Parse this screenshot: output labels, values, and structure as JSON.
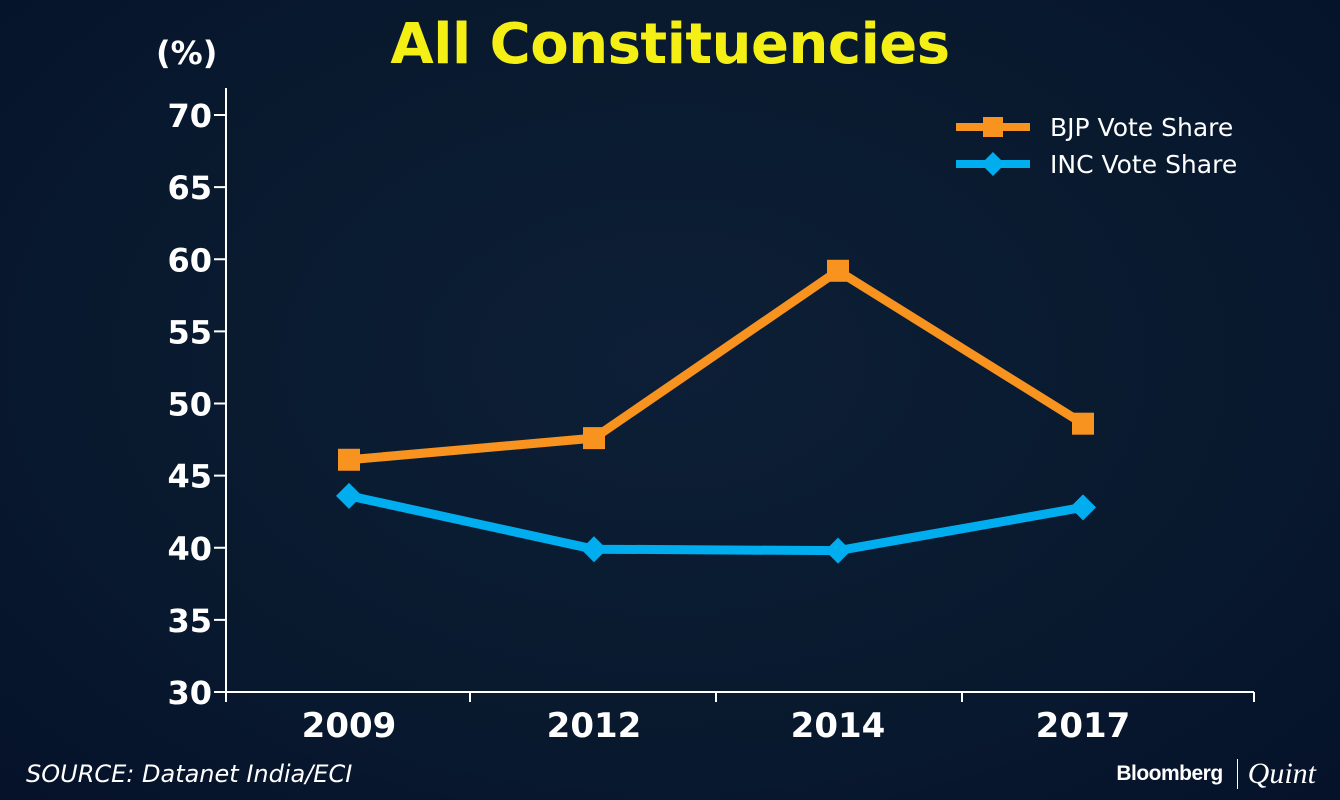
{
  "header": {
    "title": "All Constituencies",
    "unit_label": "(%)"
  },
  "footer": {
    "source": "SOURCE: Datanet India/ECI",
    "brand_primary": "Bloomberg",
    "brand_secondary": "Quint"
  },
  "chart_data": {
    "type": "line",
    "title": "All Constituencies",
    "xlabel": "",
    "ylabel": "(%)",
    "categories": [
      "2009",
      "2012",
      "2014",
      "2017"
    ],
    "ylim": [
      30,
      70
    ],
    "yticks": [
      30,
      35,
      40,
      45,
      50,
      55,
      60,
      65,
      70
    ],
    "grid": false,
    "legend_position": "top-right",
    "series": [
      {
        "name": "BJP Vote Share",
        "color": "#f7931e",
        "marker": "square",
        "values": [
          46.1,
          47.6,
          59.2,
          48.6
        ]
      },
      {
        "name": "INC Vote Share",
        "color": "#00aeef",
        "marker": "diamond",
        "values": [
          43.6,
          39.9,
          39.8,
          42.8
        ]
      }
    ]
  }
}
